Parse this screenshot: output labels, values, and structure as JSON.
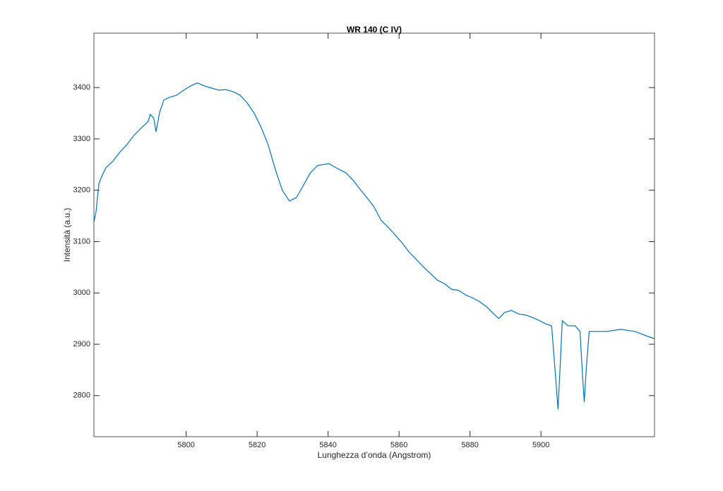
{
  "chart_data": {
    "type": "line",
    "title": "WR 140 (C IV)",
    "x_label": "Lunghezza d’onda (Angstrom)",
    "y_label": "Intensità (a.u.)",
    "color": "#0072BD",
    "x": [
      5774.0,
      5774.6,
      5775.4,
      5776.4,
      5777.4,
      5779.4,
      5781.4,
      5783.3,
      5785.3,
      5787.3,
      5789.3,
      5789.9,
      5790.9,
      5791.5,
      5792.5,
      5793.7,
      5795.3,
      5797.3,
      5799.3,
      5801.2,
      5803.2,
      5805.2,
      5807.2,
      5809.2,
      5811.2,
      5813.2,
      5815.2,
      5817.1,
      5819.1,
      5821.1,
      5823.1,
      5825.1,
      5827.1,
      5829.1,
      5831.1,
      5833.0,
      5835.0,
      5837.0,
      5840.2,
      5843.0,
      5845.0,
      5847.0,
      5849.0,
      5850.9,
      5852.9,
      5854.9,
      5856.9,
      5858.9,
      5860.9,
      5862.9,
      5864.9,
      5866.8,
      5868.8,
      5870.8,
      5872.8,
      5874.8,
      5876.8,
      5878.8,
      5880.8,
      5882.7,
      5884.7,
      5886.7,
      5888.1,
      5889.7,
      5891.7,
      5893.7,
      5895.7,
      5897.7,
      5899.6,
      5901.6,
      5903.0,
      5904.2,
      5904.8,
      5905.4,
      5906.0,
      5907.6,
      5909.6,
      5911.0,
      5911.8,
      5912.2,
      5912.8,
      5913.6,
      5915.6,
      5918.5,
      5922.5,
      5926.5,
      5929.5,
      5931.9
    ],
    "values": [
      3138,
      3158,
      3213,
      3230,
      3244,
      3257,
      3275,
      3289,
      3307,
      3321,
      3334,
      3348,
      3340,
      3314,
      3351,
      3376,
      3381,
      3385,
      3395,
      3403,
      3409,
      3403,
      3399,
      3395,
      3396,
      3392,
      3385,
      3371,
      3351,
      3323,
      3289,
      3241,
      3200,
      3179,
      3186,
      3209,
      3234,
      3248,
      3252,
      3241,
      3234,
      3220,
      3202,
      3186,
      3168,
      3142,
      3128,
      3113,
      3097,
      3079,
      3065,
      3051,
      3038,
      3025,
      3018,
      3007,
      3005,
      2996,
      2990,
      2983,
      2973,
      2959,
      2950,
      2962,
      2966,
      2959,
      2957,
      2952,
      2946,
      2939,
      2936,
      2829,
      2774,
      2856,
      2946,
      2936,
      2936,
      2925,
      2829,
      2788,
      2856,
      2925,
      2925,
      2925,
      2929,
      2925,
      2917,
      2911
    ],
    "xlim": [
      5774,
      5932
    ],
    "xticks": [
      5800,
      5820,
      5840,
      5860,
      5880,
      5900
    ],
    "ylim": [
      2720,
      3506
    ],
    "yticks": [
      2800,
      2900,
      3000,
      3100,
      3200,
      3300,
      3400
    ],
    "grid": false
  }
}
